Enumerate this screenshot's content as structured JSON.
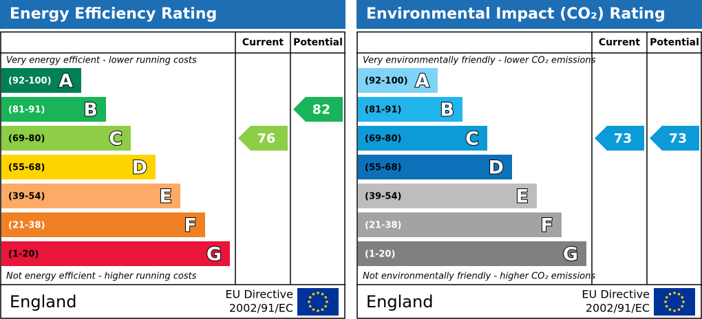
{
  "panels": [
    {
      "title": "Energy Efficiency Rating",
      "columns": [
        "Current",
        "Potential"
      ],
      "top_note": "Very energy efficient - lower running costs",
      "bottom_note": "Not energy efficient - higher running costs",
      "bands": [
        {
          "range": "(92-100)",
          "letter": "A",
          "color": "#008054",
          "label_color": "#ffffff"
        },
        {
          "range": "(81-91)",
          "letter": "B",
          "color": "#19b459",
          "label_color": "#ffffff"
        },
        {
          "range": "(69-80)",
          "letter": "C",
          "color": "#8dce46",
          "label_color": "#000000"
        },
        {
          "range": "(55-68)",
          "letter": "D",
          "color": "#ffd500",
          "label_color": "#000000"
        },
        {
          "range": "(39-54)",
          "letter": "E",
          "color": "#fcaa65",
          "label_color": "#000000"
        },
        {
          "range": "(21-38)",
          "letter": "F",
          "color": "#ef8023",
          "label_color": "#ffffff"
        },
        {
          "range": "(1-20)",
          "letter": "G",
          "color": "#e9153b",
          "label_color": "#000000"
        }
      ],
      "current": {
        "value": 76,
        "color": "#8dce46"
      },
      "potential": {
        "value": 82,
        "color": "#19b459"
      },
      "country": "England",
      "directive": [
        "EU Directive",
        "2002/91/EC"
      ]
    },
    {
      "title": "Environmental Impact (CO₂) Rating",
      "columns": [
        "Current",
        "Potential"
      ],
      "top_note": "Very environmentally friendly - lower CO₂ emissions",
      "bottom_note": "Not environmentally friendly - higher CO₂ emissions",
      "bands": [
        {
          "range": "(92-100)",
          "letter": "A",
          "color": "#7fd3f7",
          "label_color": "#000000"
        },
        {
          "range": "(81-91)",
          "letter": "B",
          "color": "#22b5ec",
          "label_color": "#000000"
        },
        {
          "range": "(69-80)",
          "letter": "C",
          "color": "#0d9ad8",
          "label_color": "#000000"
        },
        {
          "range": "(55-68)",
          "letter": "D",
          "color": "#0c71b8",
          "label_color": "#000000"
        },
        {
          "range": "(39-54)",
          "letter": "E",
          "color": "#bdbdbd",
          "label_color": "#000000"
        },
        {
          "range": "(21-38)",
          "letter": "F",
          "color": "#a3a3a3",
          "label_color": "#ffffff"
        },
        {
          "range": "(1-20)",
          "letter": "G",
          "color": "#808080",
          "label_color": "#ffffff"
        }
      ],
      "current": {
        "value": 73,
        "color": "#0d9ad8"
      },
      "potential": {
        "value": 73,
        "color": "#0d9ad8"
      },
      "country": "England",
      "directive": [
        "EU Directive",
        "2002/91/EC"
      ]
    }
  ]
}
